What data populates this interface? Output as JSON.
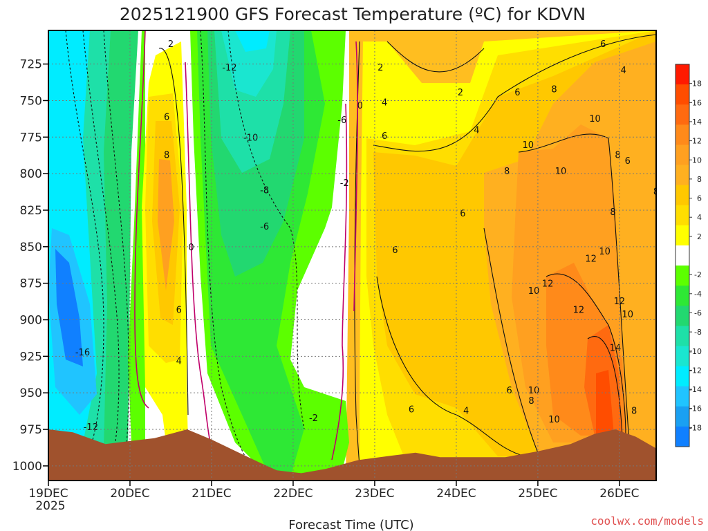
{
  "chart_data": {
    "type": "heatmap",
    "title": "2025121900 GFS Forecast Temperature (ºC) for KDVN",
    "xlabel": "Forecast Time (UTC)",
    "ylabel": "",
    "x_ticks": [
      "19DEC",
      "20DEC",
      "21DEC",
      "22DEC",
      "23DEC",
      "24DEC",
      "25DEC",
      "26DEC"
    ],
    "x_year_label": "2025",
    "xlim_days": [
      0,
      7.45
    ],
    "y_ticks": [
      725,
      750,
      775,
      800,
      825,
      850,
      875,
      900,
      925,
      950,
      975,
      1000
    ],
    "ylim_hpa": [
      1010,
      702
    ],
    "grid": "dotted",
    "colorbar": {
      "label_values": [
        18,
        16,
        14,
        12,
        10,
        8,
        6,
        4,
        2,
        -2,
        -4,
        -6,
        -8,
        -10,
        -12,
        -14,
        -16,
        -18
      ],
      "bands": [
        {
          "range": [
            18,
            20
          ],
          "color": "#ff1a00"
        },
        {
          "range": [
            16,
            18
          ],
          "color": "#ff4d00"
        },
        {
          "range": [
            14,
            16
          ],
          "color": "#ff6a10"
        },
        {
          "range": [
            12,
            14
          ],
          "color": "#ff8a1a"
        },
        {
          "range": [
            10,
            12
          ],
          "color": "#ffa020"
        },
        {
          "range": [
            8,
            10
          ],
          "color": "#ffb020"
        },
        {
          "range": [
            6,
            8
          ],
          "color": "#ffc800"
        },
        {
          "range": [
            4,
            6
          ],
          "color": "#ffde00"
        },
        {
          "range": [
            2,
            4
          ],
          "color": "#ffff00"
        },
        {
          "range": [
            -2,
            2
          ],
          "color": "#ffffff"
        },
        {
          "range": [
            -4,
            -2
          ],
          "color": "#5cff00"
        },
        {
          "range": [
            -6,
            -4
          ],
          "color": "#2ee835"
        },
        {
          "range": [
            -8,
            -6
          ],
          "color": "#22d870"
        },
        {
          "range": [
            -10,
            -8
          ],
          "color": "#1ee0a8"
        },
        {
          "range": [
            -12,
            -10
          ],
          "color": "#1ae6d0"
        },
        {
          "range": [
            -14,
            -12
          ],
          "color": "#00ecff"
        },
        {
          "range": [
            -16,
            -14
          ],
          "color": "#20c4ff"
        },
        {
          "range": [
            -18,
            -16
          ],
          "color": "#1aa0f2"
        },
        {
          "range": [
            -20,
            -18
          ],
          "color": "#1080ff"
        }
      ]
    },
    "contour_labels": [
      {
        "text": "2",
        "day": 1.5,
        "hpa": 711
      },
      {
        "text": "-12",
        "day": 2.22,
        "hpa": 727
      },
      {
        "text": "2",
        "day": 4.07,
        "hpa": 727
      },
      {
        "text": "6",
        "day": 6.8,
        "hpa": 711
      },
      {
        "text": "4",
        "day": 7.05,
        "hpa": 729
      },
      {
        "text": "2",
        "day": 5.05,
        "hpa": 744
      },
      {
        "text": "6",
        "day": 5.75,
        "hpa": 744
      },
      {
        "text": "8",
        "day": 6.2,
        "hpa": 742
      },
      {
        "text": "4",
        "day": 4.12,
        "hpa": 751
      },
      {
        "text": "0",
        "day": 3.82,
        "hpa": 753
      },
      {
        "text": "6",
        "day": 1.45,
        "hpa": 761
      },
      {
        "text": "-6",
        "day": 3.6,
        "hpa": 763
      },
      {
        "text": "10",
        "day": 6.7,
        "hpa": 762
      },
      {
        "text": "4",
        "day": 5.25,
        "hpa": 770
      },
      {
        "text": "-10",
        "day": 2.48,
        "hpa": 775
      },
      {
        "text": "6",
        "day": 4.12,
        "hpa": 774
      },
      {
        "text": "10",
        "day": 5.88,
        "hpa": 780
      },
      {
        "text": "8",
        "day": 1.45,
        "hpa": 787
      },
      {
        "text": "8",
        "day": 6.98,
        "hpa": 787
      },
      {
        "text": "6",
        "day": 7.1,
        "hpa": 791
      },
      {
        "text": "10",
        "day": 6.28,
        "hpa": 798
      },
      {
        "text": "8",
        "day": 5.62,
        "hpa": 798
      },
      {
        "text": "-2",
        "day": 3.63,
        "hpa": 806
      },
      {
        "text": "-8",
        "day": 2.65,
        "hpa": 811
      },
      {
        "text": "8",
        "day": 7.45,
        "hpa": 812
      },
      {
        "text": "6",
        "day": 5.08,
        "hpa": 827
      },
      {
        "text": "8",
        "day": 6.92,
        "hpa": 826
      },
      {
        "text": "-6",
        "day": 2.65,
        "hpa": 836
      },
      {
        "text": "0",
        "day": 1.75,
        "hpa": 850
      },
      {
        "text": "6",
        "day": 4.25,
        "hpa": 852
      },
      {
        "text": "10",
        "day": 6.82,
        "hpa": 853
      },
      {
        "text": "12",
        "day": 6.65,
        "hpa": 858
      },
      {
        "text": "12",
        "day": 6.12,
        "hpa": 875
      },
      {
        "text": "10",
        "day": 5.95,
        "hpa": 880
      },
      {
        "text": "12",
        "day": 7.0,
        "hpa": 887
      },
      {
        "text": "6",
        "day": 1.6,
        "hpa": 893
      },
      {
        "text": "12",
        "day": 6.5,
        "hpa": 893
      },
      {
        "text": "10",
        "day": 7.1,
        "hpa": 896
      },
      {
        "text": "14",
        "day": 6.95,
        "hpa": 919
      },
      {
        "text": "-16",
        "day": 0.42,
        "hpa": 922
      },
      {
        "text": "4",
        "day": 1.6,
        "hpa": 928
      },
      {
        "text": "10",
        "day": 5.95,
        "hpa": 948
      },
      {
        "text": "6",
        "day": 5.65,
        "hpa": 948
      },
      {
        "text": "8",
        "day": 5.92,
        "hpa": 955
      },
      {
        "text": "6",
        "day": 4.45,
        "hpa": 961
      },
      {
        "text": "4",
        "day": 5.12,
        "hpa": 962
      },
      {
        "text": "8",
        "day": 7.18,
        "hpa": 962
      },
      {
        "text": "-2",
        "day": 3.25,
        "hpa": 967
      },
      {
        "text": "10",
        "day": 6.2,
        "hpa": 968
      },
      {
        "text": "-12",
        "day": 0.52,
        "hpa": 973
      }
    ]
  },
  "credit": "coolwx.com/models"
}
